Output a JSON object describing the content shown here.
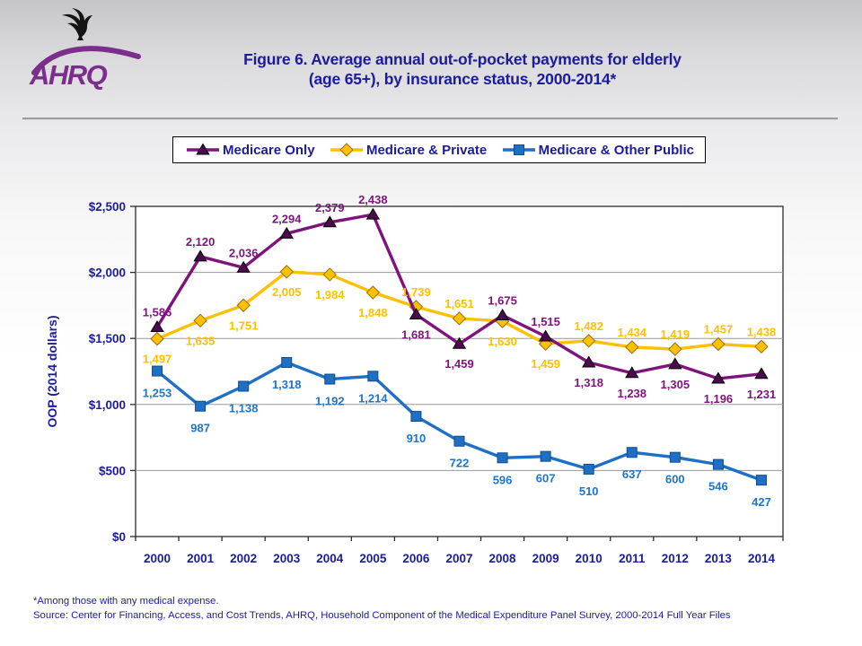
{
  "slide": {
    "title_line1": "Figure 6. Average annual out-of-pocket payments for elderly",
    "title_line2": "(age 65+), by insurance status, 2000-2014*",
    "footnote": "*Among those with any medical expense.",
    "source": "Source: Center for Financing, Access, and Cost Trends, AHRQ, Household Component of the Medical Expenditure Panel Survey,  2000-2014 Full Year Files",
    "logo_text": "AHRQ"
  },
  "colors": {
    "text_navy": "#1b1b9e",
    "logo_purple": "#7c2e8d",
    "gridline": "#9a9a9a",
    "plot_border": "#2b2b2b",
    "plot_fill": "#ffffff"
  },
  "chart_data": {
    "type": "line",
    "title": "",
    "xlabel": "",
    "ylabel": "OOP (2014 dollars)",
    "ylim": [
      0,
      2500
    ],
    "ytick_step": 500,
    "ytick_labels": [
      "$0",
      "$500",
      "$1,000",
      "$1,500",
      "$2,000",
      "$2,500"
    ],
    "grid": true,
    "legend_position": "top",
    "categories": [
      "2000",
      "2001",
      "2002",
      "2003",
      "2004",
      "2005",
      "2006",
      "2007",
      "2008",
      "2009",
      "2010",
      "2011",
      "2012",
      "2013",
      "2014"
    ],
    "series": [
      {
        "name": "Medicare Only",
        "marker": "triangle",
        "color": "#7e137e",
        "marker_fill": "#4c0b4c",
        "marker_stroke": "#000000",
        "label_color": "#7e137e",
        "values": [
          1586,
          2120,
          2036,
          2294,
          2379,
          2438,
          1681,
          1459,
          1675,
          1515,
          1318,
          1238,
          1305,
          1196,
          1231
        ],
        "label_pos": [
          "above",
          "above",
          "above",
          "above",
          "above",
          "above",
          "below",
          "below",
          "above",
          "above",
          "below",
          "below",
          "below",
          "below",
          "below"
        ]
      },
      {
        "name": "Medicare & Private",
        "marker": "diamond",
        "color": "#ffc000",
        "marker_fill": "#ffc000",
        "marker_stroke": "#996f00",
        "label_color": "#ffc000",
        "values": [
          1497,
          1635,
          1751,
          2005,
          1984,
          1848,
          1739,
          1651,
          1630,
          1459,
          1482,
          1434,
          1419,
          1457,
          1438
        ],
        "label_pos": [
          "below",
          "below",
          "below",
          "below",
          "below",
          "below",
          "above",
          "above",
          "below",
          "below",
          "above",
          "above",
          "above",
          "above",
          "above"
        ]
      },
      {
        "name": "Medicare & Other Public",
        "marker": "square",
        "color": "#1f6fc4",
        "marker_fill": "#1f6fc4",
        "marker_stroke": "#0f4c8c",
        "label_color": "#1f74cc",
        "values": [
          1253,
          987,
          1138,
          1318,
          1192,
          1214,
          910,
          722,
          596,
          607,
          510,
          637,
          600,
          546,
          427
        ],
        "label_pos": [
          "below",
          "below",
          "below",
          "below",
          "below",
          "below",
          "below",
          "below",
          "below",
          "below",
          "below",
          "below",
          "below",
          "below",
          "below"
        ]
      }
    ]
  }
}
